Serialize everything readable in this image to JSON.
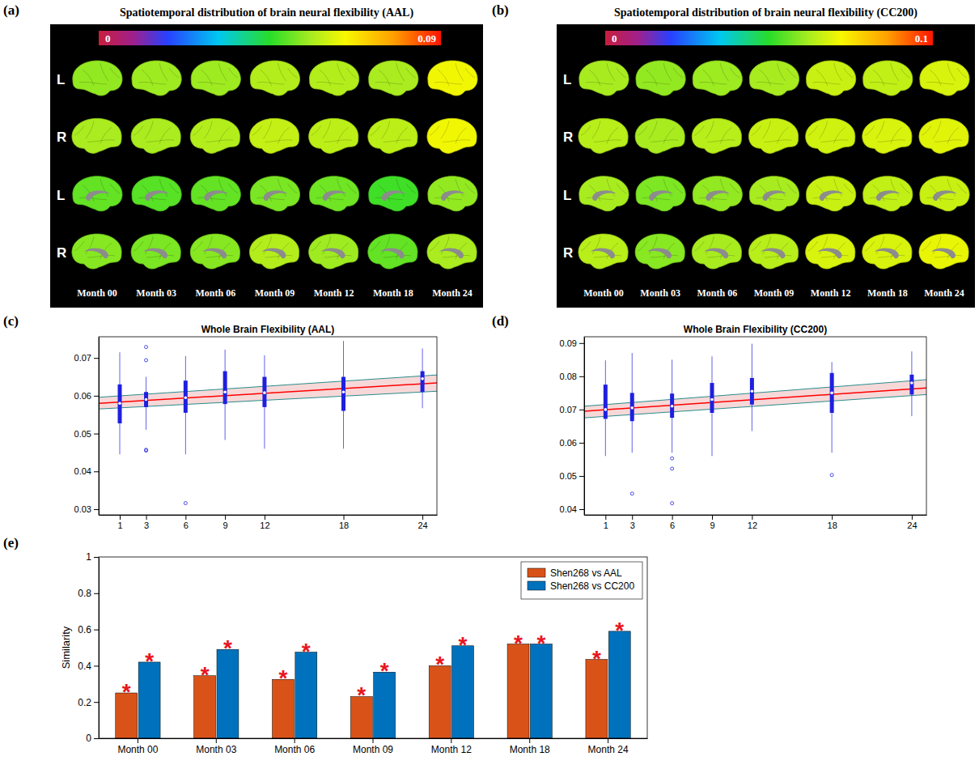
{
  "chart_data": [
    {
      "type": "heatmap",
      "panel": "(a)",
      "title": "Spatiotemporal distribution of brain neural flexibility (AAL)",
      "rows": [
        "L",
        "R",
        "L",
        "R"
      ],
      "columns": [
        "Month 00",
        "Month 03",
        "Month 06",
        "Month 09",
        "Month 12",
        "Month 18",
        "Month 24"
      ],
      "cells": [
        [
          0.054,
          0.055,
          0.055,
          0.057,
          0.057,
          0.056,
          0.064
        ],
        [
          0.056,
          0.056,
          0.057,
          0.059,
          0.058,
          0.058,
          0.064
        ],
        [
          0.05,
          0.049,
          0.05,
          0.052,
          0.051,
          0.047,
          0.054
        ],
        [
          0.053,
          0.052,
          0.053,
          0.057,
          0.055,
          0.05,
          0.056
        ]
      ],
      "colorbar": {
        "range": [
          0,
          0.09
        ],
        "ticks": [
          0,
          0.09
        ]
      }
    },
    {
      "type": "heatmap",
      "panel": "(b)",
      "title": "Spatiotemporal distribution of brain neural flexibility (CC200)",
      "rows": [
        "L",
        "R",
        "L",
        "R"
      ],
      "columns": [
        "Month 00",
        "Month 03",
        "Month 06",
        "Month 09",
        "Month 12",
        "Month 18",
        "Month 24"
      ],
      "cells": [
        [
          0.062,
          0.06,
          0.061,
          0.062,
          0.066,
          0.065,
          0.068
        ],
        [
          0.064,
          0.062,
          0.064,
          0.066,
          0.067,
          0.068,
          0.069
        ],
        [
          0.062,
          0.058,
          0.06,
          0.062,
          0.066,
          0.065,
          0.066
        ],
        [
          0.064,
          0.059,
          0.062,
          0.064,
          0.068,
          0.068,
          0.07
        ]
      ],
      "colorbar": {
        "range": [
          0,
          0.1
        ],
        "ticks": [
          0,
          0.1
        ]
      }
    },
    {
      "type": "box",
      "panel": "(c)",
      "title": "Whole Brain Flexibility (AAL)",
      "color": "#1f1fe0",
      "x": [
        1,
        3,
        6,
        9,
        12,
        18,
        24
      ],
      "boxes": [
        {
          "min": 0.0445,
          "q1": 0.0527,
          "median": 0.058,
          "q3": 0.063,
          "max": 0.0715,
          "outliers": []
        },
        {
          "min": 0.051,
          "q1": 0.057,
          "median": 0.059,
          "q3": 0.061,
          "max": 0.065,
          "outliers": [
            0.0729,
            0.0694,
            0.0457,
            0.0455
          ]
        },
        {
          "min": 0.0445,
          "q1": 0.0555,
          "median": 0.0595,
          "q3": 0.064,
          "max": 0.0705,
          "outliers": [
            0.0316
          ]
        },
        {
          "min": 0.0483,
          "q1": 0.0578,
          "median": 0.061,
          "q3": 0.0665,
          "max": 0.0722,
          "outliers": []
        },
        {
          "min": 0.046,
          "q1": 0.057,
          "median": 0.0608,
          "q3": 0.065,
          "max": 0.0707,
          "outliers": []
        },
        {
          "min": 0.046,
          "q1": 0.056,
          "median": 0.061,
          "q3": 0.065,
          "max": 0.0745,
          "outliers": []
        },
        {
          "min": 0.0567,
          "q1": 0.061,
          "median": 0.0645,
          "q3": 0.0665,
          "max": 0.0725,
          "outliers": []
        }
      ],
      "fit": {
        "x": [
          -0.6,
          25.1
        ],
        "values": [
          0.058,
          0.0634
        ],
        "lower": [
          0.0565,
          0.0612
        ],
        "upper": [
          0.0596,
          0.0655
        ],
        "color": "#ff0000"
      },
      "xlim": [
        -0.6,
        25.1
      ],
      "xticks": [
        1,
        3,
        6,
        9,
        12,
        18,
        24
      ],
      "ylim": [
        0.0285,
        0.0756
      ],
      "yticks": [
        0.03,
        0.04,
        0.05,
        0.06,
        0.07
      ]
    },
    {
      "type": "box",
      "panel": "(d)",
      "title": "Whole Brain Flexibility (CC200)",
      "color": "#1f1fe0",
      "x": [
        1,
        3,
        6,
        9,
        12,
        18,
        24
      ],
      "boxes": [
        {
          "min": 0.056,
          "q1": 0.0672,
          "median": 0.07,
          "q3": 0.0775,
          "max": 0.0848,
          "outliers": []
        },
        {
          "min": 0.057,
          "q1": 0.0665,
          "median": 0.0705,
          "q3": 0.075,
          "max": 0.087,
          "outliers": [
            0.0447
          ]
        },
        {
          "min": 0.057,
          "q1": 0.0675,
          "median": 0.071,
          "q3": 0.0748,
          "max": 0.085,
          "outliers": [
            0.0553,
            0.0522,
            0.0418
          ]
        },
        {
          "min": 0.056,
          "q1": 0.069,
          "median": 0.073,
          "q3": 0.078,
          "max": 0.086,
          "outliers": []
        },
        {
          "min": 0.0635,
          "q1": 0.0715,
          "median": 0.0755,
          "q3": 0.0795,
          "max": 0.0898,
          "outliers": []
        },
        {
          "min": 0.057,
          "q1": 0.069,
          "median": 0.075,
          "q3": 0.081,
          "max": 0.0843,
          "outliers": [
            0.0503
          ]
        },
        {
          "min": 0.068,
          "q1": 0.0745,
          "median": 0.078,
          "q3": 0.0805,
          "max": 0.0875,
          "outliers": []
        }
      ],
      "fit": {
        "x": [
          -0.6,
          25.1
        ],
        "values": [
          0.0695,
          0.0765
        ],
        "lower": [
          0.0675,
          0.0745
        ],
        "upper": [
          0.071,
          0.079
        ],
        "color": "#ff0000"
      },
      "xlim": [
        -0.6,
        25.1
      ],
      "xticks": [
        1,
        3,
        6,
        9,
        12,
        18,
        24
      ],
      "ylim": [
        0.0383,
        0.0919
      ],
      "yticks": [
        0.04,
        0.05,
        0.06,
        0.07,
        0.08,
        0.09
      ]
    },
    {
      "type": "bar",
      "panel": "(e)",
      "categories": [
        "Month 00",
        "Month 03",
        "Month 06",
        "Month 09",
        "Month 12",
        "Month 18",
        "Month 24"
      ],
      "series": [
        {
          "name": "Shen268 vs AAL",
          "color": "#d95319",
          "values": [
            0.25,
            0.345,
            0.325,
            0.23,
            0.4,
            0.52,
            0.435
          ],
          "significance": [
            "*",
            "*",
            "*",
            "*",
            "*",
            "*",
            "*"
          ]
        },
        {
          "name": "Shen268 vs CC200",
          "color": "#0072bd",
          "values": [
            0.42,
            0.49,
            0.475,
            0.365,
            0.51,
            0.52,
            0.59
          ],
          "significance": [
            "*",
            "*",
            "*",
            "*",
            "*",
            "*",
            "*"
          ]
        }
      ],
      "ylabel": "Similarity",
      "ylim": [
        0,
        1
      ],
      "yticks": [
        0,
        0.2,
        0.4,
        0.6,
        0.8,
        1
      ],
      "legend": "upper right"
    }
  ]
}
